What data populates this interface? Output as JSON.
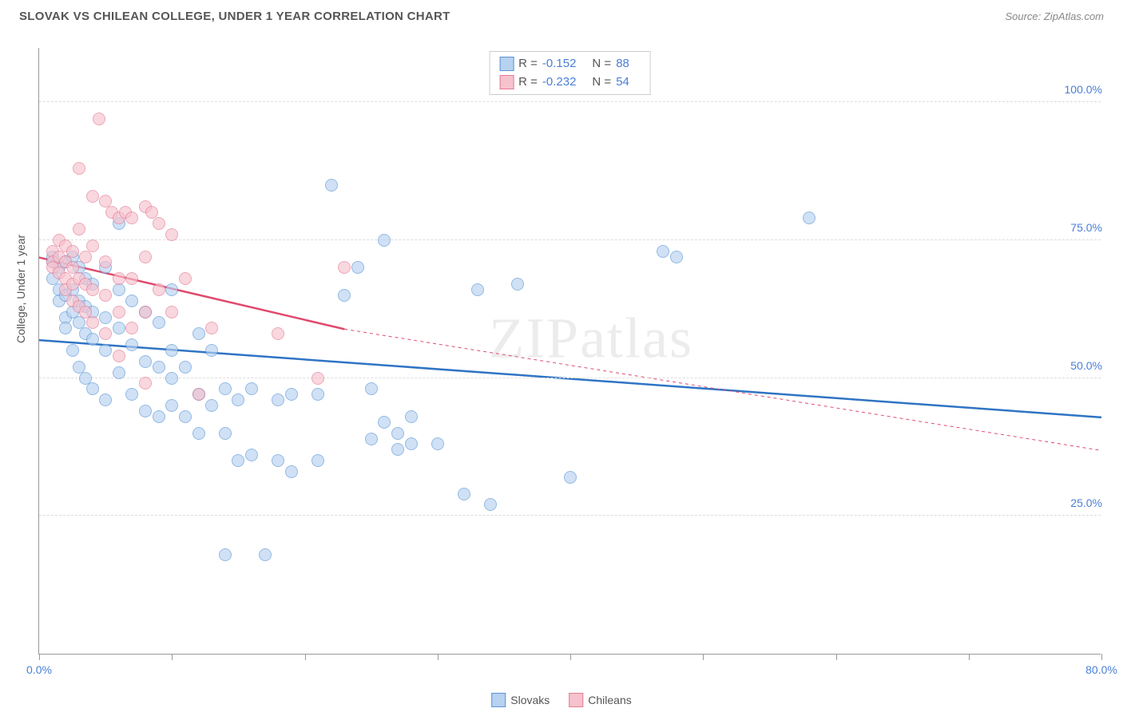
{
  "header": {
    "title": "SLOVAK VS CHILEAN COLLEGE, UNDER 1 YEAR CORRELATION CHART",
    "source": "Source: ZipAtlas.com"
  },
  "watermark": "ZIPatlas",
  "chart": {
    "type": "scatter",
    "yaxis_title": "College, Under 1 year",
    "xlim": [
      0,
      80
    ],
    "ylim": [
      0,
      110
    ],
    "xtick_positions": [
      0,
      10,
      20,
      30,
      40,
      50,
      60,
      70,
      80
    ],
    "xtick_labels": {
      "0": "0.0%",
      "80": "80.0%"
    },
    "ytick_positions": [
      25,
      50,
      75,
      100
    ],
    "ytick_labels": {
      "25": "25.0%",
      "50": "50.0%",
      "75": "75.0%",
      "100": "100.0%"
    },
    "grid_color": "#dddddd",
    "background_color": "#ffffff",
    "point_radius": 8,
    "point_stroke_width": 1.5,
    "series": [
      {
        "name": "Slovaks",
        "fill": "#b7d2f0",
        "stroke": "#5a94d6",
        "fill_opacity": 0.65,
        "R": "-0.152",
        "N": "88",
        "trend": {
          "x1": 0,
          "y1": 57,
          "x2": 80,
          "y2": 43,
          "color": "#2f74c4",
          "width": 2.5,
          "dash": "none"
        },
        "points": [
          [
            1,
            71
          ],
          [
            1,
            72
          ],
          [
            1,
            68
          ],
          [
            1.5,
            70
          ],
          [
            1.5,
            66
          ],
          [
            1.5,
            64
          ],
          [
            2,
            71
          ],
          [
            2,
            65
          ],
          [
            2,
            61
          ],
          [
            2,
            59
          ],
          [
            2.5,
            72
          ],
          [
            2.5,
            66
          ],
          [
            2.5,
            62
          ],
          [
            2.5,
            55
          ],
          [
            3,
            70
          ],
          [
            3,
            64
          ],
          [
            3,
            60
          ],
          [
            3,
            52
          ],
          [
            3.5,
            68
          ],
          [
            3.5,
            63
          ],
          [
            3.5,
            58
          ],
          [
            3.5,
            50
          ],
          [
            4,
            67
          ],
          [
            4,
            62
          ],
          [
            4,
            57
          ],
          [
            4,
            48
          ],
          [
            5,
            70
          ],
          [
            5,
            61
          ],
          [
            5,
            55
          ],
          [
            5,
            46
          ],
          [
            6,
            78
          ],
          [
            6,
            66
          ],
          [
            6,
            59
          ],
          [
            6,
            51
          ],
          [
            7,
            64
          ],
          [
            7,
            56
          ],
          [
            7,
            47
          ],
          [
            8,
            62
          ],
          [
            8,
            53
          ],
          [
            8,
            44
          ],
          [
            9,
            60
          ],
          [
            9,
            52
          ],
          [
            9,
            43
          ],
          [
            10,
            66
          ],
          [
            10,
            55
          ],
          [
            10,
            50
          ],
          [
            10,
            45
          ],
          [
            11,
            52
          ],
          [
            11,
            43
          ],
          [
            12,
            58
          ],
          [
            12,
            47
          ],
          [
            12,
            40
          ],
          [
            13,
            55
          ],
          [
            13,
            45
          ],
          [
            14,
            48
          ],
          [
            14,
            40
          ],
          [
            14,
            18
          ],
          [
            15,
            46
          ],
          [
            15,
            35
          ],
          [
            16,
            48
          ],
          [
            16,
            36
          ],
          [
            17,
            18
          ],
          [
            18,
            46
          ],
          [
            18,
            35
          ],
          [
            19,
            47
          ],
          [
            19,
            33
          ],
          [
            21,
            47
          ],
          [
            21,
            35
          ],
          [
            22,
            85
          ],
          [
            23,
            65
          ],
          [
            24,
            70
          ],
          [
            25,
            48
          ],
          [
            25,
            39
          ],
          [
            26,
            75
          ],
          [
            26,
            42
          ],
          [
            27,
            40
          ],
          [
            27,
            37
          ],
          [
            28,
            43
          ],
          [
            28,
            38
          ],
          [
            30,
            38
          ],
          [
            32,
            29
          ],
          [
            33,
            66
          ],
          [
            34,
            27
          ],
          [
            36,
            67
          ],
          [
            40,
            32
          ],
          [
            47,
            73
          ],
          [
            48,
            72
          ],
          [
            58,
            79
          ]
        ]
      },
      {
        "name": "Chileans",
        "fill": "#f6c2ce",
        "stroke": "#e37a94",
        "fill_opacity": 0.65,
        "R": "-0.232",
        "N": "54",
        "trend": {
          "x1": 0,
          "y1": 72,
          "x2": 23,
          "y2": 59,
          "color": "#e04a6d",
          "width": 2.5,
          "dash": "none",
          "ext_x2": 80,
          "ext_y2": 37,
          "ext_dash": "4 4"
        },
        "points": [
          [
            1,
            73
          ],
          [
            1,
            71
          ],
          [
            1,
            70
          ],
          [
            1.5,
            75
          ],
          [
            1.5,
            72
          ],
          [
            1.5,
            69
          ],
          [
            2,
            74
          ],
          [
            2,
            71
          ],
          [
            2,
            68
          ],
          [
            2,
            66
          ],
          [
            2.5,
            73
          ],
          [
            2.5,
            70
          ],
          [
            2.5,
            67
          ],
          [
            2.5,
            64
          ],
          [
            3,
            88
          ],
          [
            3,
            77
          ],
          [
            3,
            68
          ],
          [
            3,
            63
          ],
          [
            3.5,
            72
          ],
          [
            3.5,
            67
          ],
          [
            3.5,
            62
          ],
          [
            4,
            83
          ],
          [
            4,
            74
          ],
          [
            4,
            66
          ],
          [
            4,
            60
          ],
          [
            4.5,
            97
          ],
          [
            5,
            82
          ],
          [
            5,
            71
          ],
          [
            5,
            65
          ],
          [
            5,
            58
          ],
          [
            5.5,
            80
          ],
          [
            6,
            79
          ],
          [
            6,
            68
          ],
          [
            6,
            62
          ],
          [
            6,
            54
          ],
          [
            6.5,
            80
          ],
          [
            7,
            79
          ],
          [
            7,
            68
          ],
          [
            7,
            59
          ],
          [
            8,
            81
          ],
          [
            8,
            72
          ],
          [
            8,
            62
          ],
          [
            8,
            49
          ],
          [
            8.5,
            80
          ],
          [
            9,
            78
          ],
          [
            9,
            66
          ],
          [
            10,
            76
          ],
          [
            10,
            62
          ],
          [
            11,
            68
          ],
          [
            12,
            47
          ],
          [
            13,
            59
          ],
          [
            18,
            58
          ],
          [
            21,
            50
          ],
          [
            23,
            70
          ]
        ]
      }
    ]
  },
  "legend": {
    "items": [
      {
        "label": "Slovaks",
        "fill": "#b7d2f0",
        "stroke": "#5a94d6"
      },
      {
        "label": "Chileans",
        "fill": "#f6c2ce",
        "stroke": "#e37a94"
      }
    ]
  }
}
